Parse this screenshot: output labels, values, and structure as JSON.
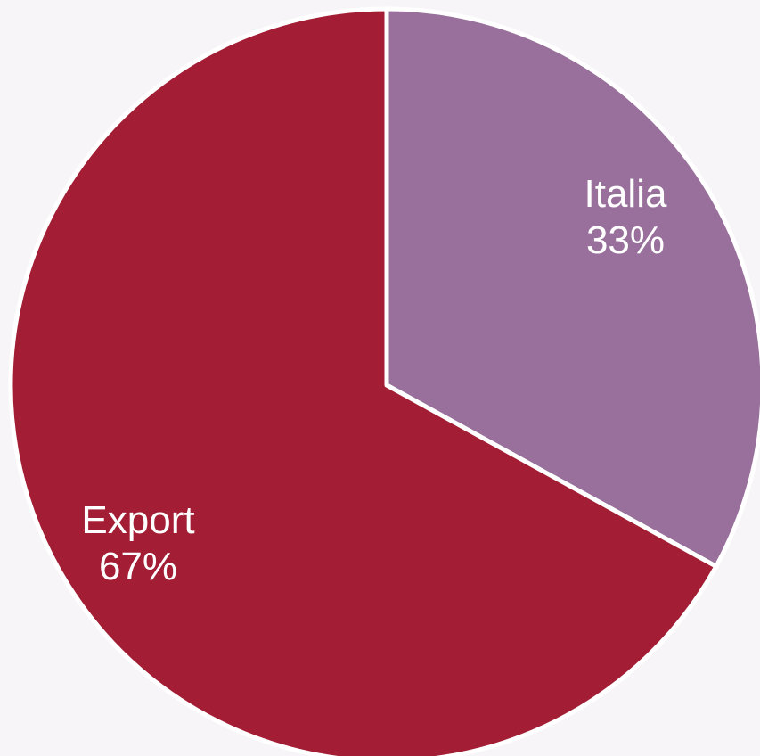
{
  "chart_data": {
    "type": "pie",
    "title": "",
    "slices": [
      {
        "label": "Italia",
        "value": 33,
        "value_label": "33%",
        "color": "#98709b"
      },
      {
        "label": "Export",
        "value": 67,
        "value_label": "67%",
        "color": "#a31e35"
      }
    ],
    "start_angle": "12 o'clock",
    "direction": "clockwise",
    "slice_border_color": "#ffffff",
    "background_color": "#f7f5f8"
  }
}
